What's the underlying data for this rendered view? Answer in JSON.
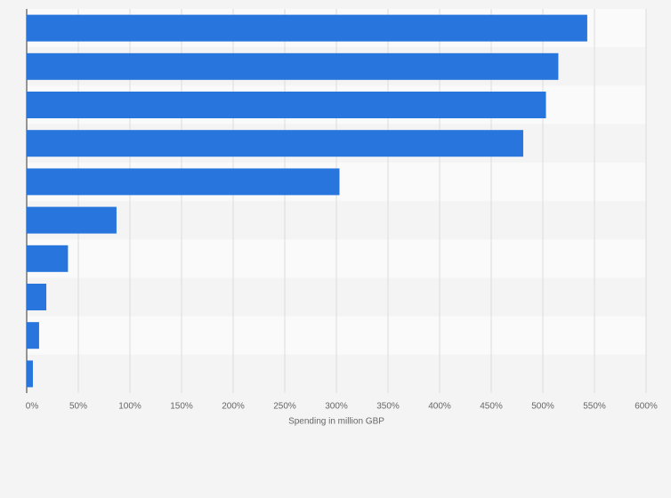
{
  "chart_data": {
    "type": "bar",
    "orientation": "horizontal",
    "x_label": "Spending in million GBP",
    "categories": [
      null,
      null,
      null,
      null,
      null,
      null,
      null,
      null,
      null,
      null
    ],
    "values": [
      543,
      515,
      503,
      481,
      303,
      87,
      40,
      19,
      12,
      6
    ],
    "color": "#2775dd",
    "xlim": [
      0,
      600
    ],
    "xticks": [
      {
        "value": 0,
        "label": "0%"
      },
      {
        "value": 50,
        "label": "50%"
      },
      {
        "value": 100,
        "label": "100%"
      },
      {
        "value": 150,
        "label": "150%"
      },
      {
        "value": 200,
        "label": "200%"
      },
      {
        "value": 250,
        "label": "250%"
      },
      {
        "value": 300,
        "label": "300%"
      },
      {
        "value": 350,
        "label": "350%"
      },
      {
        "value": 400,
        "label": "400%"
      },
      {
        "value": 450,
        "label": "450%"
      },
      {
        "value": 500,
        "label": "500%"
      },
      {
        "value": 550,
        "label": "550%"
      },
      {
        "value": 600,
        "label": "600%"
      }
    ],
    "grid": true
  }
}
